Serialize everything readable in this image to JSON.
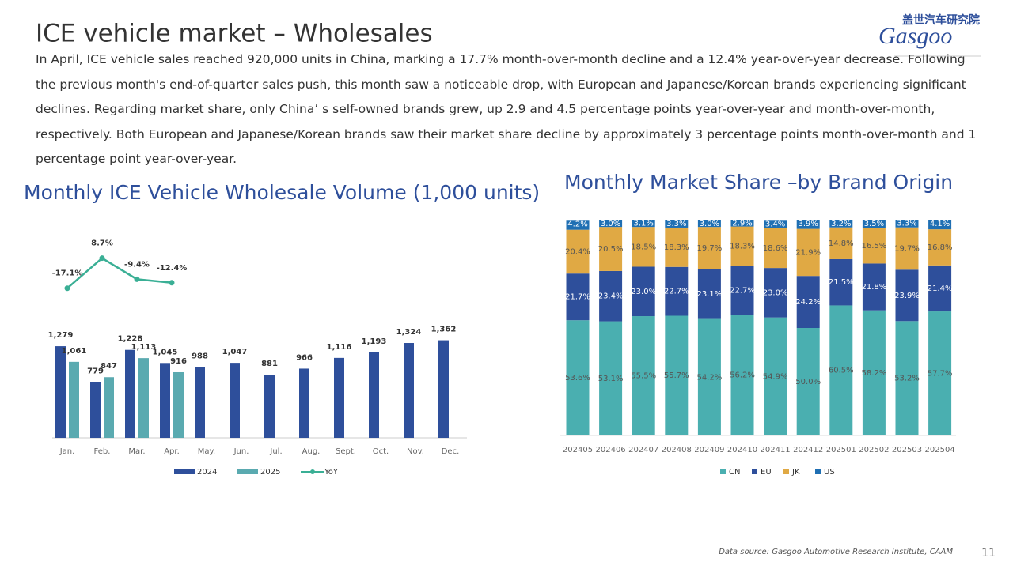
{
  "title": "ICE vehicle market – Wholesales",
  "body": "In April, ICE vehicle sales reached 920,000 units in China, marking a 17.7% month-over-month  decline and a 12.4% year-over-year decrease. Following the previous month's end-of-quarter  sales push, this month saw a noticeable drop, with European and Japanese/Korean brands experiencing significant declines. Regarding market share, only China’ s self-owned  brands grew, up 2.9 and 4.5 percentage points year-over-year and month-over-month, respectively. Both European and Japanese/Korean brands saw their market share decline by approximately 3 percentage points month-over-month and 1 percentage point year-over-year.",
  "logo": {
    "cn": "盖世汽车研究院",
    "en": "Gasgoo"
  },
  "source": "Data source: Gasgoo Automotive Research Institute, CAAM",
  "page_number": "11",
  "chart_data": [
    {
      "type": "bar",
      "title": "Monthly ICE Vehicle Wholesale Volume (1,000 units)",
      "categories": [
        "Jan.",
        "Feb.",
        "Mar.",
        "Apr.",
        "May.",
        "Jun.",
        "Jul.",
        "Aug.",
        "Sept.",
        "Oct.",
        "Nov.",
        "Dec."
      ],
      "ylim": [
        0,
        1600
      ],
      "y2lim": [
        -60,
        20
      ],
      "series": [
        {
          "name": "2024",
          "color": "#2e4f9b",
          "values": [
            1279,
            779,
            1228,
            1045,
            988,
            1047,
            881,
            966,
            1116,
            1193,
            1324,
            1362
          ],
          "value_labels": [
            "1,279",
            "779",
            "1,228",
            "1,045",
            "988",
            "1,047",
            "881",
            "966",
            "1,116",
            "1,193",
            "1,324",
            "1,362"
          ]
        },
        {
          "name": "2025",
          "color": "#5aaab0",
          "values": [
            1061,
            847,
            1113,
            916,
            null,
            null,
            null,
            null,
            null,
            null,
            null,
            null
          ],
          "value_labels": [
            "1,061",
            "847",
            "1,113",
            "916",
            null,
            null,
            null,
            null,
            null,
            null,
            null,
            null
          ]
        },
        {
          "name": "YoY",
          "type": "line",
          "axis": "y2",
          "color": "#3aaf95",
          "values": [
            -17.1,
            8.7,
            -9.4,
            -12.4,
            null,
            null,
            null,
            null,
            null,
            null,
            null,
            null
          ],
          "value_labels": [
            "-17.1%",
            "8.7%",
            "-9.4%",
            "-12.4%",
            null,
            null,
            null,
            null,
            null,
            null,
            null,
            null
          ]
        }
      ]
    },
    {
      "type": "stacked_bar",
      "title": "Monthly Market Share –by Brand Origin",
      "categories": [
        "202405",
        "202406",
        "202407",
        "202408",
        "202409",
        "202410",
        "202411",
        "202412",
        "202501",
        "202502",
        "202503",
        "202504"
      ],
      "ylim": [
        0,
        100
      ],
      "series": [
        {
          "name": "CN",
          "color": "#4aafb0",
          "values": [
            53.6,
            53.1,
            55.5,
            55.7,
            54.2,
            56.2,
            54.9,
            50.0,
            60.5,
            58.2,
            53.2,
            57.7
          ],
          "value_labels": [
            "53.6%",
            "53.1%",
            "55.5%",
            "55.7%",
            "54.2%",
            "56.2%",
            "54.9%",
            "50.0%",
            "60.5%",
            "58.2%",
            "53.2%",
            "57.7%"
          ]
        },
        {
          "name": "EU",
          "color": "#2e4f9b",
          "values": [
            21.7,
            23.4,
            23.0,
            22.7,
            23.1,
            22.7,
            23.0,
            24.2,
            21.5,
            21.8,
            23.9,
            21.4
          ],
          "value_labels": [
            "21.7%",
            "23.4%",
            "23.0%",
            "22.7%",
            "23.1%",
            "22.7%",
            "23.0%",
            "24.2%",
            "21.5%",
            "21.8%",
            "23.9%",
            "21.4%"
          ]
        },
        {
          "name": "JK",
          "color": "#e0a944",
          "values": [
            20.4,
            20.5,
            18.5,
            18.3,
            19.7,
            18.3,
            18.6,
            21.9,
            14.8,
            16.5,
            19.7,
            16.8
          ],
          "value_labels": [
            "20.4%",
            "20.5%",
            "18.5%",
            "18.3%",
            "19.7%",
            "18.3%",
            "18.6%",
            "21.9%",
            "14.8%",
            "16.5%",
            "19.7%",
            "16.8%"
          ]
        },
        {
          "name": "US",
          "color": "#1f6fb3",
          "values": [
            4.2,
            3.0,
            3.1,
            3.3,
            3.0,
            2.9,
            3.4,
            3.9,
            3.2,
            3.5,
            3.3,
            4.1
          ],
          "value_labels": [
            "4.2%",
            "3.0%",
            "3.1%",
            "3.3%",
            "3.0%",
            "2.9%",
            "3.4%",
            "3.9%",
            "3.2%",
            "3.5%",
            "3.3%",
            "4.1%"
          ]
        }
      ]
    }
  ]
}
